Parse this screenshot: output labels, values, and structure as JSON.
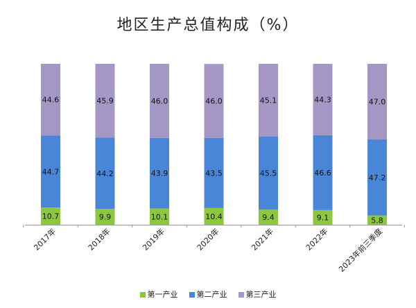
{
  "chart_data": {
    "type": "bar",
    "stacked": true,
    "title": "地区生产总值构成（%）",
    "categories": [
      "2017年",
      "2018年",
      "2019年",
      "2020年",
      "2021年",
      "2022年",
      "2023年前三季度"
    ],
    "series": [
      {
        "name": "第一产业",
        "color": "#8dc63f",
        "values": [
          10.7,
          9.9,
          10.1,
          10.4,
          9.4,
          9.1,
          5.8
        ]
      },
      {
        "name": "第二产业",
        "color": "#4a86d8",
        "values": [
          44.7,
          44.2,
          43.9,
          43.5,
          45.5,
          46.6,
          47.2
        ]
      },
      {
        "name": "第三产业",
        "color": "#a497c6",
        "values": [
          44.6,
          45.9,
          46.0,
          46.0,
          45.1,
          44.3,
          47.0
        ]
      }
    ],
    "ylim": [
      0,
      100
    ],
    "legend_position": "bottom",
    "grid": false
  }
}
